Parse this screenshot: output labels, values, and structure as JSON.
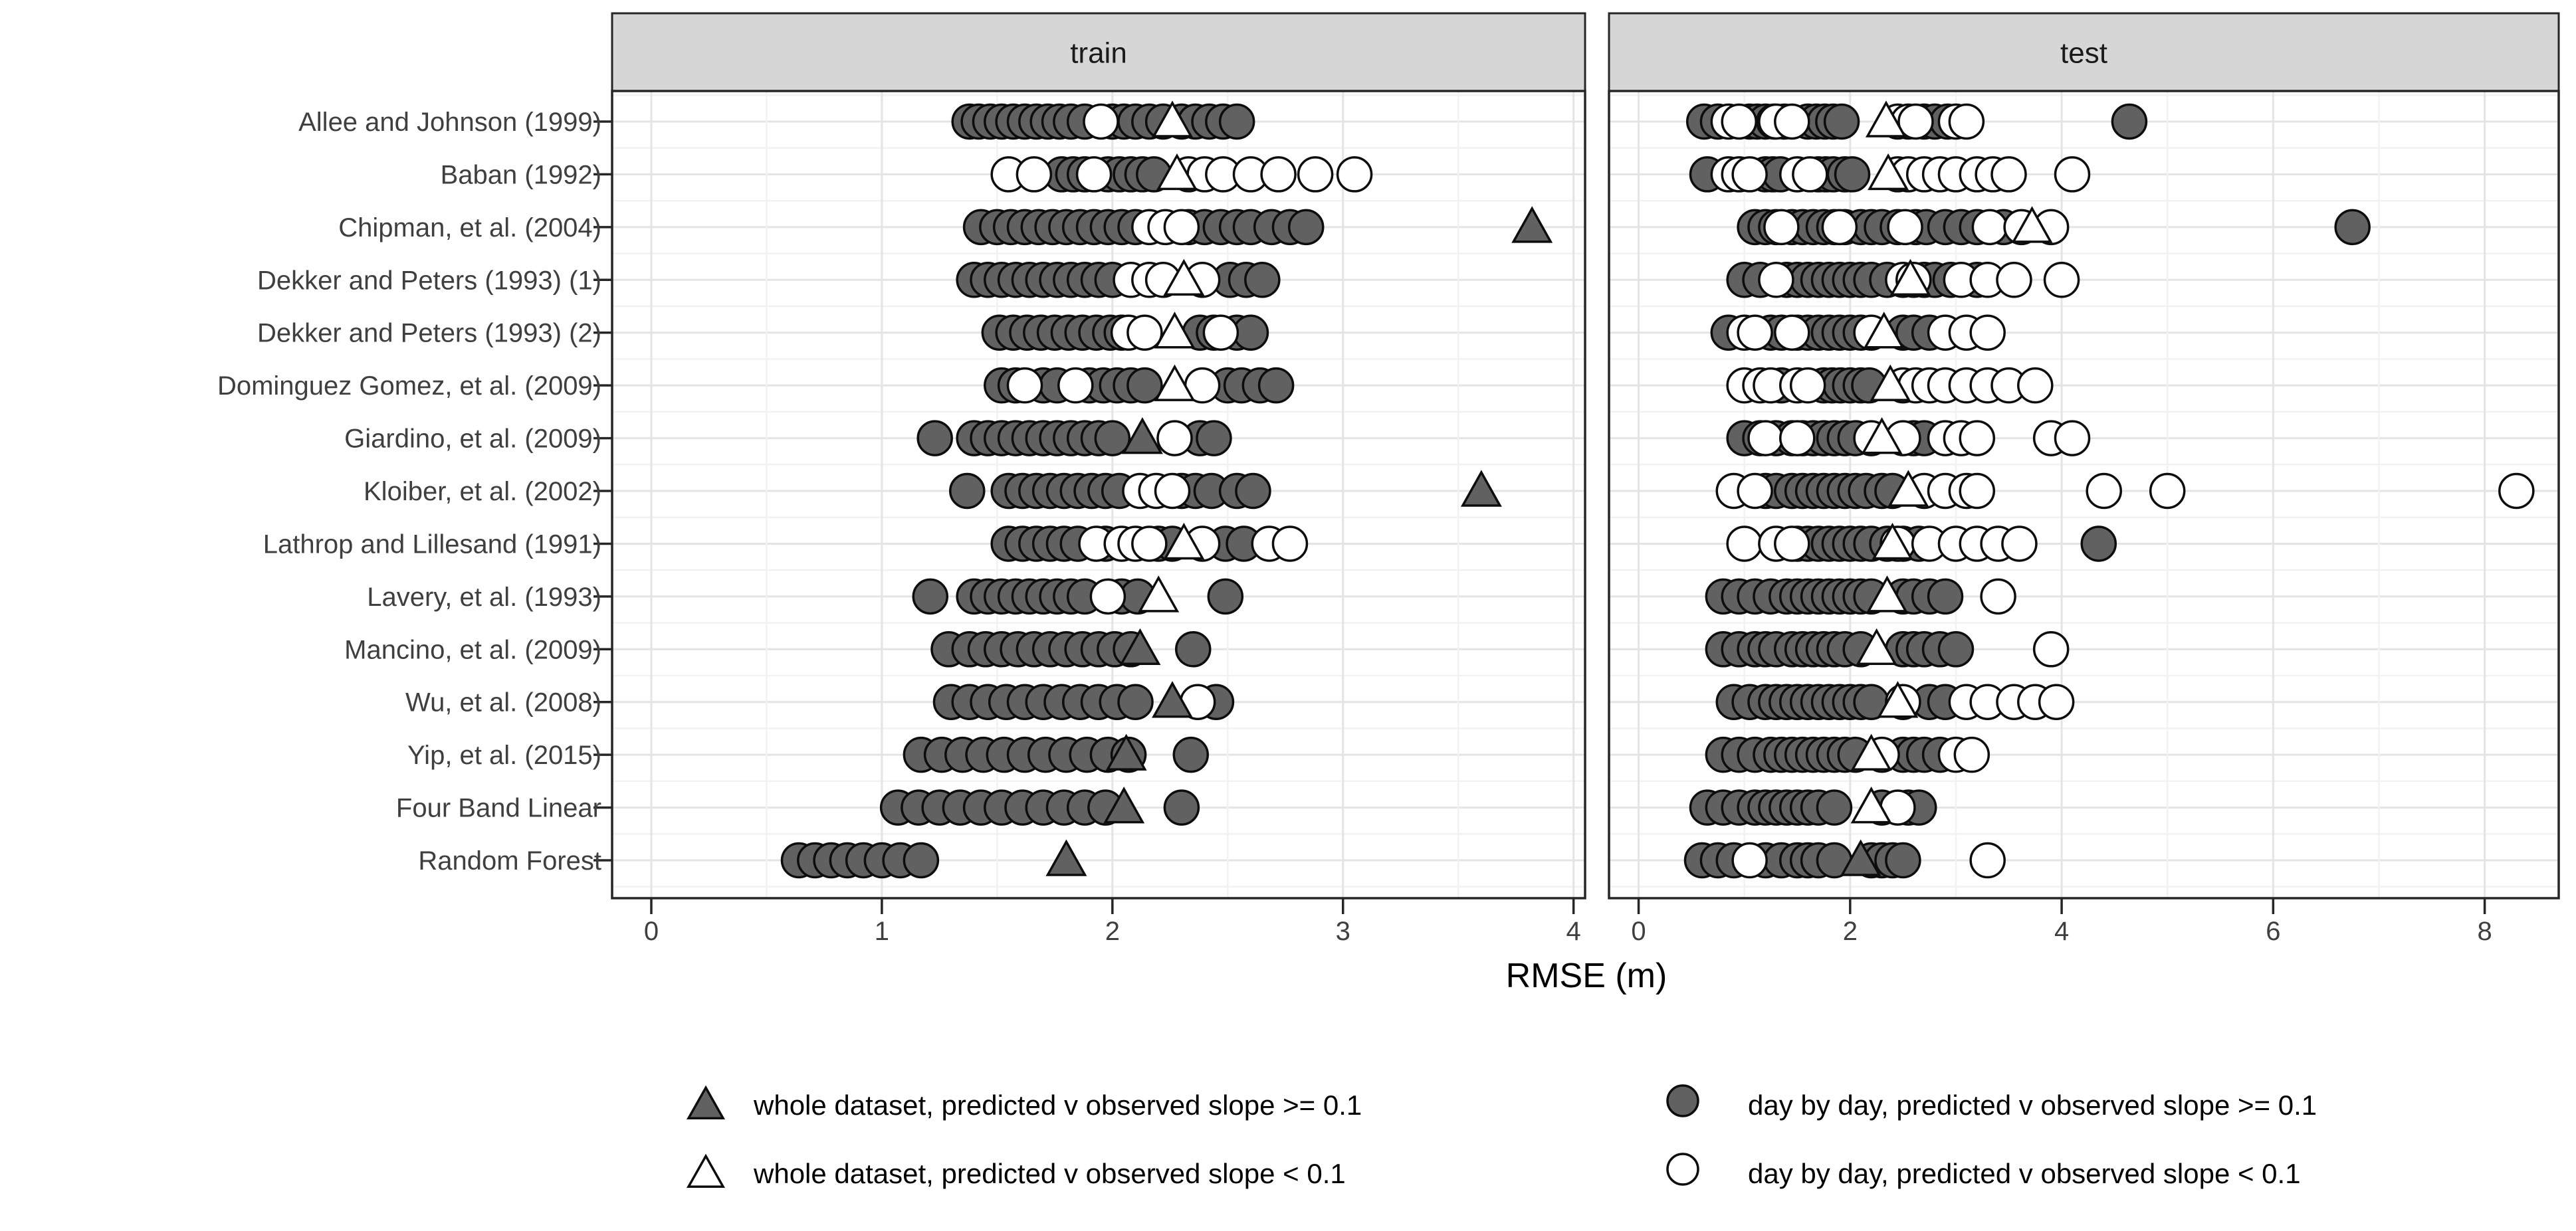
{
  "title": "",
  "axis": {
    "x_title": "RMSE (m)",
    "x_tick_labels_train": [
      "0",
      "1",
      "2",
      "3",
      "4"
    ],
    "x_tick_labels_test": [
      "0",
      "2",
      "4",
      "6",
      "8"
    ]
  },
  "legend": {
    "items": [
      {
        "shape": "triangle-filled-icon",
        "label": "whole dataset, predicted v observed slope >= 0.1"
      },
      {
        "shape": "triangle-open-icon",
        "label": "whole dataset, predicted v observed slope < 0.1"
      },
      {
        "shape": "circle-filled-icon",
        "label": "day by day, predicted v observed slope >= 0.1"
      },
      {
        "shape": "circle-open-icon",
        "label": "day by day, predicted v observed slope < 0.1"
      }
    ]
  },
  "colors": {
    "dark_fill": "#616161",
    "open_fill": "#ffffff",
    "point_stroke": "#0d0d0d",
    "strip_bg": "#d6d6d6",
    "strip_border": "#262626",
    "panel_border": "#262626",
    "grid_major": "#e4e4e4",
    "grid_minor": "#f2f2f2",
    "axis_text": "#3f3f3f",
    "tick_color": "#262626",
    "title_text": "#000000"
  },
  "chart_data": {
    "type": "scatter",
    "orientation": "horizontal-strip",
    "xlabel": "RMSE (m)",
    "ylabel": "",
    "grid": "on",
    "legend_position": "bottom",
    "categories": [
      "Allee and Johnson (1999)",
      "Baban (1992)",
      "Chipman, et al. (2004)",
      "Dekker and Peters (1993) (1)",
      "Dekker and Peters (1993) (2)",
      "Dominguez Gomez, et al. (2009)",
      "Giardino, et al. (2009)",
      "Kloiber, et al. (2002)",
      "Lathrop and Lillesand (1991)",
      "Lavery, et al. (1993)",
      "Mancino, et al. (2009)",
      "Wu, et al. (2008)",
      "Yip, et al. (2015)",
      "Four Band Linear",
      "Random Forest"
    ],
    "facets": [
      {
        "label": "train",
        "xlim": [
          -0.17,
          4.05
        ],
        "ticks": [
          0,
          1,
          2,
          3,
          4
        ],
        "minor_ticks": [
          0.5,
          1.5,
          2.5,
          3.5
        ],
        "rows": [
          {
            "dark": [
              1.38,
              1.42,
              1.47,
              1.52,
              1.57,
              1.62,
              1.67,
              1.72,
              1.77,
              1.82,
              1.88,
              2.0,
              2.05,
              2.1,
              2.16,
              2.22,
              2.3,
              2.36,
              2.42,
              2.48,
              2.54
            ],
            "open": [
              1.95
            ],
            "triangles": [
              {
                "x": 2.26,
                "filled": false
              }
            ]
          },
          {
            "dark": [
              1.78,
              1.83,
              1.88,
              1.98,
              2.03,
              2.08,
              2.13,
              2.18
            ],
            "open": [
              1.55,
              1.66,
              1.92,
              2.33,
              2.4,
              2.48,
              2.6,
              2.72,
              2.88,
              3.05
            ],
            "triangles": [
              {
                "x": 2.28,
                "filled": false
              }
            ]
          },
          {
            "dark": [
              1.43,
              1.5,
              1.56,
              1.62,
              1.68,
              1.74,
              1.8,
              1.86,
              1.92,
              1.98,
              2.04,
              2.1,
              2.33,
              2.4,
              2.47,
              2.54,
              2.6,
              2.69,
              2.77,
              2.84
            ],
            "open": [
              2.16,
              2.23,
              2.3
            ],
            "triangles": [
              {
                "x": 3.82,
                "filled": true
              }
            ]
          },
          {
            "dark": [
              1.4,
              1.46,
              1.52,
              1.58,
              1.64,
              1.7,
              1.76,
              1.82,
              1.88,
              1.94,
              2.0,
              2.51,
              2.58,
              2.65
            ],
            "open": [
              2.08,
              2.16,
              2.22,
              2.39
            ],
            "triangles": [
              {
                "x": 2.31,
                "filled": false
              }
            ]
          },
          {
            "dark": [
              1.51,
              1.57,
              1.63,
              1.69,
              1.75,
              1.81,
              1.87,
              1.93,
              1.99,
              2.04,
              2.38,
              2.44,
              2.54,
              2.6
            ],
            "open": [
              2.07,
              2.14,
              2.47
            ],
            "triangles": [
              {
                "x": 2.27,
                "filled": false
              }
            ]
          },
          {
            "dark": [
              1.52,
              1.58,
              1.7,
              1.76,
              1.9,
              1.96,
              2.02,
              2.08,
              2.14,
              2.5,
              2.56,
              2.64,
              2.71
            ],
            "open": [
              1.62,
              1.84,
              2.39
            ],
            "triangles": [
              {
                "x": 2.27,
                "filled": false
              }
            ]
          },
          {
            "dark": [
              1.23,
              1.4,
              1.46,
              1.52,
              1.58,
              1.64,
              1.7,
              1.76,
              1.82,
              1.88,
              1.94,
              2.0,
              2.38,
              2.44
            ],
            "open": [
              2.27
            ],
            "triangles": [
              {
                "x": 2.13,
                "filled": true
              }
            ]
          },
          {
            "dark": [
              1.37,
              1.55,
              1.61,
              1.67,
              1.73,
              1.79,
              1.85,
              1.91,
              1.97,
              2.03,
              2.3,
              2.36,
              2.43,
              2.54,
              2.61
            ],
            "open": [
              2.12,
              2.19,
              2.26
            ],
            "triangles": [
              {
                "x": 3.6,
                "filled": true
              }
            ]
          },
          {
            "dark": [
              1.55,
              1.61,
              1.67,
              1.73,
              1.79,
              1.85,
              1.97,
              2.2,
              2.26,
              2.49,
              2.57
            ],
            "open": [
              1.93,
              2.04,
              2.1,
              2.16,
              2.39,
              2.68,
              2.77
            ],
            "triangles": [
              {
                "x": 2.31,
                "filled": false
              }
            ]
          },
          {
            "dark": [
              1.21,
              1.4,
              1.46,
              1.52,
              1.58,
              1.64,
              1.7,
              1.76,
              1.82,
              1.88,
              2.04,
              2.11,
              2.49
            ],
            "open": [
              1.98
            ],
            "triangles": [
              {
                "x": 2.2,
                "filled": false
              }
            ]
          },
          {
            "dark": [
              1.29,
              1.38,
              1.45,
              1.52,
              1.59,
              1.66,
              1.73,
              1.8,
              1.87,
              1.94,
              2.01,
              2.08,
              2.35
            ],
            "open": [],
            "triangles": [
              {
                "x": 2.12,
                "filled": true
              }
            ]
          },
          {
            "dark": [
              1.3,
              1.38,
              1.46,
              1.54,
              1.62,
              1.7,
              1.78,
              1.86,
              1.94,
              2.02,
              2.1,
              2.45
            ],
            "open": [
              2.37
            ],
            "triangles": [
              {
                "x": 2.26,
                "filled": true
              }
            ]
          },
          {
            "dark": [
              1.17,
              1.26,
              1.35,
              1.44,
              1.53,
              1.62,
              1.71,
              1.8,
              1.89,
              1.98,
              2.07,
              2.34
            ],
            "open": [],
            "triangles": [
              {
                "x": 2.06,
                "filled": true
              }
            ]
          },
          {
            "dark": [
              1.07,
              1.16,
              1.25,
              1.34,
              1.43,
              1.52,
              1.61,
              1.7,
              1.79,
              1.88,
              1.97,
              2.3
            ],
            "open": [],
            "triangles": [
              {
                "x": 2.05,
                "filled": true
              }
            ]
          },
          {
            "dark": [
              0.64,
              0.71,
              0.78,
              0.85,
              0.92,
              1.0,
              1.08,
              1.17
            ],
            "open": [],
            "triangles": [
              {
                "x": 1.8,
                "filled": true
              }
            ]
          }
        ]
      },
      {
        "label": "test",
        "xlim": [
          -0.28,
          8.7
        ],
        "ticks": [
          0,
          2,
          4,
          6,
          8
        ],
        "minor_ticks": [
          1,
          3,
          5,
          7
        ],
        "rows": [
          {
            "dark": [
              0.62,
              0.75,
              1.05,
              1.12,
              1.2,
              1.28,
              1.38,
              1.6,
              1.68,
              1.76,
              1.84,
              1.92,
              2.7,
              2.8,
              2.92,
              4.64
            ],
            "open": [
              0.85,
              0.95,
              1.3,
              1.45,
              2.45,
              2.55,
              2.62,
              3.0,
              3.1
            ],
            "triangles": [
              {
                "x": 2.34,
                "filled": false
              }
            ]
          },
          {
            "dark": [
              0.65,
              1.2,
              1.27,
              1.34,
              1.7,
              1.77,
              1.84,
              1.95,
              2.02
            ],
            "open": [
              0.85,
              0.95,
              1.05,
              1.5,
              1.62,
              2.45,
              2.55,
              2.7,
              2.85,
              3.0,
              3.2,
              3.35,
              3.5,
              4.1
            ],
            "triangles": [
              {
                "x": 2.36,
                "filled": false
              }
            ]
          },
          {
            "dark": [
              1.1,
              1.2,
              1.3,
              1.45,
              1.55,
              1.65,
              1.75,
              1.85,
              1.95,
              2.1,
              2.2,
              2.3,
              2.45,
              2.62,
              2.72,
              2.9,
              3.05,
              3.2,
              3.45,
              6.75
            ],
            "open": [
              1.35,
              1.9,
              2.52,
              3.32,
              3.62,
              3.9
            ],
            "triangles": [
              {
                "x": 3.72,
                "filled": false
              }
            ]
          },
          {
            "dark": [
              1.0,
              1.15,
              1.4,
              1.5,
              1.6,
              1.7,
              1.8,
              1.9,
              2.0,
              2.1,
              2.2,
              2.35,
              2.7,
              2.8,
              2.95,
              3.2
            ],
            "open": [
              1.3,
              2.5,
              2.6,
              3.05,
              3.3,
              3.55,
              4.0
            ],
            "triangles": [
              {
                "x": 2.57,
                "filled": false
              }
            ]
          },
          {
            "dark": [
              0.85,
              1.25,
              1.35,
              1.5,
              1.6,
              1.7,
              1.8,
              1.9,
              2.0,
              2.1,
              2.5,
              2.6,
              2.75
            ],
            "open": [
              1.0,
              1.1,
              1.45,
              2.2,
              2.9,
              3.1,
              3.3
            ],
            "triangles": [
              {
                "x": 2.32,
                "filled": false
              }
            ]
          },
          {
            "dark": [
              1.35,
              1.75,
              1.83,
              1.91,
              2.0,
              2.1,
              2.18
            ],
            "open": [
              1.0,
              1.15,
              1.25,
              1.5,
              1.6,
              2.5,
              2.62,
              2.75,
              2.9,
              3.1,
              3.3,
              3.5,
              3.75
            ],
            "triangles": [
              {
                "x": 2.38,
                "filled": false
              }
            ]
          },
          {
            "dark": [
              1.0,
              1.15,
              1.3,
              1.45,
              1.55,
              1.65,
              1.75,
              1.85,
              1.95,
              2.05,
              2.6,
              2.7
            ],
            "open": [
              1.2,
              1.5,
              2.2,
              2.5,
              2.9,
              3.05,
              3.2,
              3.9,
              4.1
            ],
            "triangles": [
              {
                "x": 2.3,
                "filled": false
              }
            ]
          },
          {
            "dark": [
              1.2,
              1.3,
              1.45,
              1.55,
              1.65,
              1.75,
              1.85,
              1.95,
              2.05,
              2.15,
              2.3,
              2.4
            ],
            "open": [
              0.9,
              1.1,
              2.7,
              2.9,
              3.1,
              3.2,
              4.4,
              5.0,
              8.3
            ],
            "triangles": [
              {
                "x": 2.55,
                "filled": false
              }
            ]
          },
          {
            "dark": [
              1.5,
              1.6,
              1.7,
              1.8,
              1.9,
              2.0,
              2.1,
              2.2,
              2.35,
              2.5,
              2.65,
              4.35
            ],
            "open": [
              1.0,
              1.3,
              1.45,
              2.45,
              2.75,
              3.0,
              3.2,
              3.4,
              3.6
            ],
            "triangles": [
              {
                "x": 2.4,
                "filled": false
              }
            ]
          },
          {
            "dark": [
              0.8,
              0.95,
              1.1,
              1.25,
              1.4,
              1.5,
              1.6,
              1.7,
              1.8,
              1.9,
              2.0,
              2.1,
              2.2,
              2.5,
              2.6,
              2.75,
              2.9
            ],
            "open": [
              3.4
            ],
            "triangles": [
              {
                "x": 2.35,
                "filled": false
              }
            ]
          },
          {
            "dark": [
              0.8,
              0.95,
              1.1,
              1.2,
              1.3,
              1.45,
              1.55,
              1.65,
              1.75,
              1.85,
              1.95,
              2.1,
              2.5,
              2.6,
              2.7,
              2.85,
              3.0
            ],
            "open": [
              3.9
            ],
            "triangles": [
              {
                "x": 2.25,
                "filled": false
              }
            ]
          },
          {
            "dark": [
              0.9,
              1.05,
              1.2,
              1.3,
              1.4,
              1.5,
              1.6,
              1.7,
              1.8,
              1.9,
              2.0,
              2.1,
              2.2,
              2.75,
              2.9
            ],
            "open": [
              2.5,
              3.1,
              3.3,
              3.55,
              3.75,
              3.95
            ],
            "triangles": [
              {
                "x": 2.45,
                "filled": false
              }
            ]
          },
          {
            "dark": [
              0.8,
              0.95,
              1.1,
              1.25,
              1.35,
              1.45,
              1.55,
              1.65,
              1.75,
              1.85,
              1.95,
              2.05,
              2.5,
              2.6,
              2.7,
              2.85
            ],
            "open": [
              2.3,
              3.0,
              3.15
            ],
            "triangles": [
              {
                "x": 2.2,
                "filled": false
              }
            ]
          },
          {
            "dark": [
              0.65,
              0.8,
              0.95,
              1.1,
              1.2,
              1.3,
              1.4,
              1.5,
              1.6,
              1.7,
              1.85,
              2.3,
              2.55,
              2.65
            ],
            "open": [
              2.45
            ],
            "triangles": [
              {
                "x": 2.2,
                "filled": false
              }
            ]
          },
          {
            "dark": [
              0.6,
              0.75,
              0.9,
              1.2,
              1.35,
              1.5,
              1.6,
              1.7,
              1.85,
              2.2,
              2.3,
              2.4,
              2.5
            ],
            "open": [
              1.05,
              3.3
            ],
            "triangles": [
              {
                "x": 2.1,
                "filled": true
              }
            ]
          }
        ]
      }
    ]
  }
}
